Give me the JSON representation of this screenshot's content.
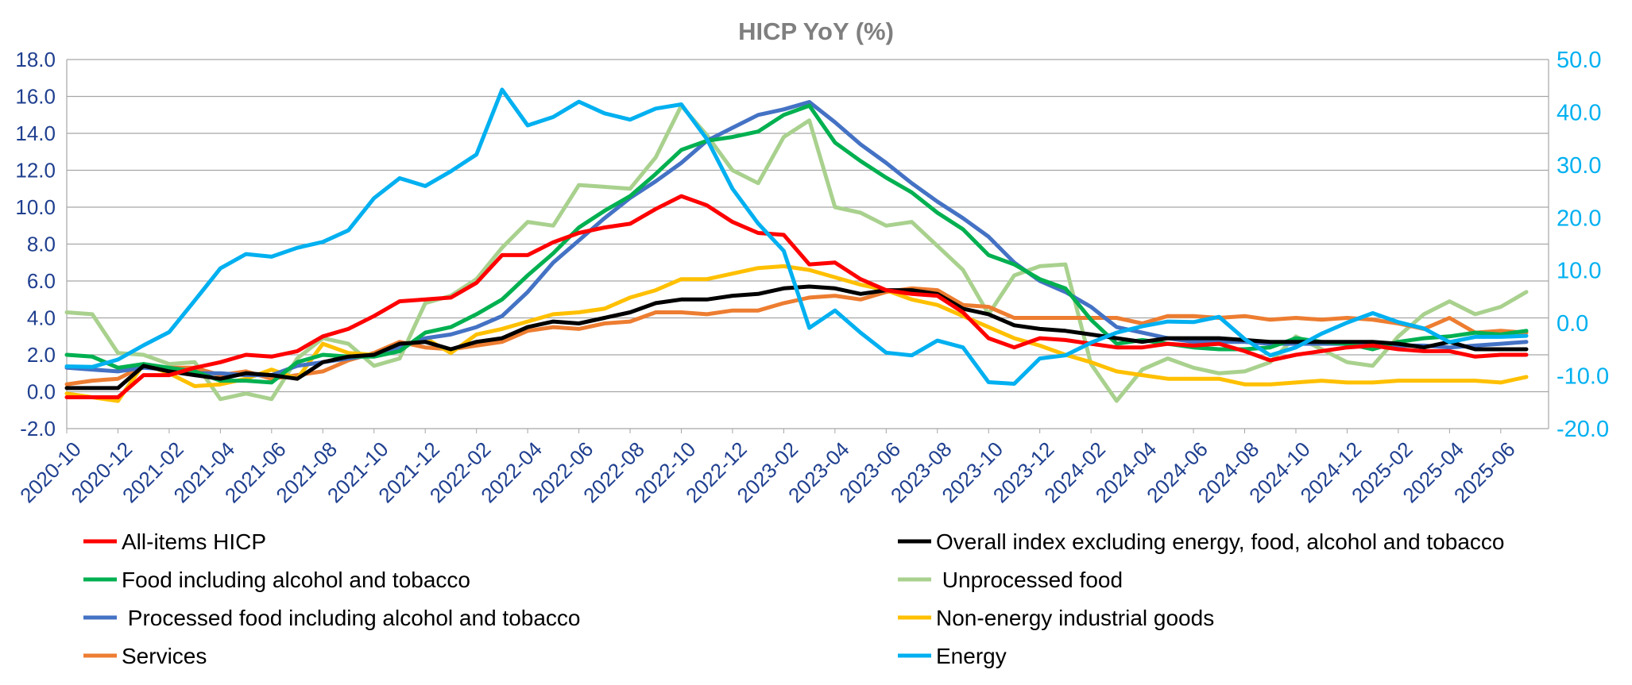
{
  "chart_data": {
    "type": "line",
    "title": "HICP YoY (%)",
    "x": [
      "2020-10",
      "2020-11",
      "2020-12",
      "2021-01",
      "2021-02",
      "2021-03",
      "2021-04",
      "2021-05",
      "2021-06",
      "2021-07",
      "2021-08",
      "2021-09",
      "2021-10",
      "2021-11",
      "2021-12",
      "2022-01",
      "2022-02",
      "2022-03",
      "2022-04",
      "2022-05",
      "2022-06",
      "2022-07",
      "2022-08",
      "2022-09",
      "2022-10",
      "2022-11",
      "2022-12",
      "2023-01",
      "2023-02",
      "2023-03",
      "2023-04",
      "2023-05",
      "2023-06",
      "2023-07",
      "2023-08",
      "2023-09",
      "2023-10",
      "2023-11",
      "2023-12",
      "2024-01",
      "2024-02",
      "2024-03",
      "2024-04",
      "2024-05",
      "2024-06",
      "2024-07",
      "2024-08",
      "2024-09",
      "2024-10",
      "2024-11",
      "2024-12",
      "2025-01",
      "2025-02",
      "2025-03",
      "2025-04",
      "2025-05",
      "2025-06",
      "2025-07"
    ],
    "x_tick_labels": [
      "2020-10",
      "2020-12",
      "2021-02",
      "2021-04",
      "2021-06",
      "2021-08",
      "2021-10",
      "2021-12",
      "2022-02",
      "2022-04",
      "2022-06",
      "2022-08",
      "2022-10",
      "2022-12",
      "2023-02",
      "2023-04",
      "2023-06",
      "2023-08",
      "2023-10",
      "2023-12",
      "2024-02",
      "2024-04",
      "2024-06",
      "2024-08",
      "2024-10",
      "2024-12",
      "2025-02",
      "2025-04",
      "2025-06"
    ],
    "y_left": {
      "ylim": [
        -2,
        18
      ],
      "ticks": [
        "-2.0",
        "0.0",
        "2.0",
        "4.0",
        "6.0",
        "8.0",
        "10.0",
        "12.0",
        "14.0",
        "16.0",
        "18.0"
      ],
      "color": "#1f3f8f"
    },
    "y_right": {
      "ylim": [
        -20,
        50
      ],
      "ticks": [
        "-20.0",
        "-10.0",
        "0.0",
        "10.0",
        "20.0",
        "30.0",
        "40.0",
        "50.0"
      ],
      "color": "#00b0f0"
    },
    "grid": true,
    "legend_position": "bottom",
    "series": [
      {
        "name": "All-items HICP",
        "color": "#ff0000",
        "axis": "left",
        "values": [
          -0.3,
          -0.3,
          -0.3,
          0.9,
          0.9,
          1.3,
          1.6,
          2.0,
          1.9,
          2.2,
          3.0,
          3.4,
          4.1,
          4.9,
          5.0,
          5.1,
          5.9,
          7.4,
          7.4,
          8.1,
          8.6,
          8.9,
          9.1,
          9.9,
          10.6,
          10.1,
          9.2,
          8.6,
          8.5,
          6.9,
          7.0,
          6.1,
          5.5,
          5.3,
          5.2,
          4.3,
          2.9,
          2.4,
          2.9,
          2.8,
          2.6,
          2.4,
          2.4,
          2.6,
          2.5,
          2.6,
          2.2,
          1.7,
          2.0,
          2.2,
          2.4,
          2.5,
          2.3,
          2.2,
          2.2,
          1.9,
          2.0,
          2.0
        ]
      },
      {
        "name": "Overall index excluding energy, food, alcohol and tobacco",
        "color": "#000000",
        "axis": "left",
        "values": [
          0.2,
          0.2,
          0.2,
          1.4,
          1.1,
          0.9,
          0.7,
          1.0,
          0.9,
          0.7,
          1.6,
          1.9,
          2.0,
          2.6,
          2.7,
          2.3,
          2.7,
          2.9,
          3.5,
          3.8,
          3.7,
          4.0,
          4.3,
          4.8,
          5.0,
          5.0,
          5.2,
          5.3,
          5.6,
          5.7,
          5.6,
          5.3,
          5.5,
          5.5,
          5.3,
          4.5,
          4.2,
          3.6,
          3.4,
          3.3,
          3.1,
          2.9,
          2.7,
          2.9,
          2.9,
          2.9,
          2.8,
          2.7,
          2.7,
          2.7,
          2.7,
          2.7,
          2.6,
          2.4,
          2.7,
          2.3,
          2.3,
          2.3
        ]
      },
      {
        "name": "Food including alcohol and tobacco",
        "color": "#00b050",
        "axis": "left",
        "values": [
          2.0,
          1.9,
          1.3,
          1.5,
          1.3,
          1.1,
          0.6,
          0.6,
          0.5,
          1.6,
          2.0,
          1.9,
          1.9,
          2.2,
          3.2,
          3.5,
          4.2,
          5.0,
          6.3,
          7.5,
          8.9,
          9.8,
          10.6,
          11.8,
          13.1,
          13.6,
          13.8,
          14.1,
          15.0,
          15.5,
          13.5,
          12.5,
          11.6,
          10.8,
          9.7,
          8.8,
          7.4,
          6.9,
          6.1,
          5.6,
          3.9,
          2.6,
          2.8,
          2.6,
          2.4,
          2.3,
          2.3,
          2.4,
          2.9,
          2.7,
          2.6,
          2.3,
          2.7,
          2.9,
          3.0,
          3.2,
          3.1,
          3.3
        ]
      },
      {
        "name": " Unprocessed food",
        "color": "#a9d18e",
        "axis": "left",
        "values": [
          4.3,
          4.2,
          2.1,
          2.0,
          1.5,
          1.6,
          -0.4,
          -0.1,
          -0.4,
          1.8,
          2.9,
          2.6,
          1.4,
          1.8,
          4.8,
          5.2,
          6.1,
          7.8,
          9.2,
          9.0,
          11.2,
          11.1,
          11.0,
          12.7,
          15.5,
          13.9,
          12.0,
          11.3,
          13.8,
          14.7,
          10.0,
          9.7,
          9.0,
          9.2,
          7.9,
          6.6,
          4.2,
          6.3,
          6.8,
          6.9,
          1.5,
          -0.5,
          1.2,
          1.8,
          1.3,
          1.0,
          1.1,
          1.6,
          3.0,
          2.3,
          1.6,
          1.4,
          3.0,
          4.2,
          4.9,
          4.2,
          4.6,
          5.4
        ]
      },
      {
        "name": " Processed food including alcohol and tobacco",
        "color": "#4472c4",
        "axis": "left",
        "values": [
          1.3,
          1.2,
          1.1,
          1.3,
          1.2,
          1.0,
          1.0,
          0.9,
          0.9,
          1.4,
          1.6,
          1.8,
          2.0,
          2.4,
          2.9,
          3.1,
          3.5,
          4.1,
          5.4,
          7.0,
          8.2,
          9.4,
          10.5,
          11.4,
          12.4,
          13.6,
          14.3,
          15.0,
          15.3,
          15.7,
          14.6,
          13.4,
          12.4,
          11.3,
          10.3,
          9.4,
          8.4,
          7.0,
          6.0,
          5.4,
          4.6,
          3.5,
          3.2,
          2.9,
          2.7,
          2.7,
          2.7,
          2.6,
          2.6,
          2.6,
          2.6,
          2.6,
          2.5,
          2.5,
          2.4,
          2.5,
          2.6,
          2.7
        ]
      },
      {
        "name": "Non-energy industrial goods",
        "color": "#ffc000",
        "axis": "left",
        "values": [
          -0.1,
          -0.3,
          -0.5,
          1.5,
          1.0,
          0.3,
          0.4,
          0.7,
          1.2,
          0.7,
          2.6,
          2.1,
          2.0,
          2.4,
          2.9,
          2.1,
          3.1,
          3.4,
          3.8,
          4.2,
          4.3,
          4.5,
          5.1,
          5.5,
          6.1,
          6.1,
          6.4,
          6.7,
          6.8,
          6.6,
          6.2,
          5.8,
          5.5,
          5.0,
          4.7,
          4.1,
          3.5,
          2.9,
          2.5,
          2.0,
          1.6,
          1.1,
          0.9,
          0.7,
          0.7,
          0.7,
          0.4,
          0.4,
          0.5,
          0.6,
          0.5,
          0.5,
          0.6,
          0.6,
          0.6,
          0.6,
          0.5,
          0.8
        ]
      },
      {
        "name": "Services",
        "color": "#ed7d31",
        "axis": "left",
        "values": [
          0.4,
          0.6,
          0.7,
          1.4,
          1.3,
          1.3,
          0.9,
          1.1,
          0.7,
          0.9,
          1.1,
          1.7,
          2.1,
          2.7,
          2.4,
          2.3,
          2.5,
          2.7,
          3.3,
          3.5,
          3.4,
          3.7,
          3.8,
          4.3,
          4.3,
          4.2,
          4.4,
          4.4,
          4.8,
          5.1,
          5.2,
          5.0,
          5.4,
          5.6,
          5.5,
          4.7,
          4.6,
          4.0,
          4.0,
          4.0,
          4.0,
          4.0,
          3.7,
          4.1,
          4.1,
          4.0,
          4.1,
          3.9,
          4.0,
          3.9,
          4.0,
          3.9,
          3.7,
          3.4,
          4.0,
          3.2,
          3.3,
          3.2
        ]
      },
      {
        "name": "Energy",
        "color": "#00b0f0",
        "axis": "right",
        "values": [
          -8.2,
          -8.3,
          -6.9,
          -4.2,
          -1.7,
          4.3,
          10.4,
          13.1,
          12.6,
          14.3,
          15.4,
          17.6,
          23.7,
          27.5,
          26.0,
          28.8,
          32.0,
          44.3,
          37.5,
          39.1,
          42.0,
          39.8,
          38.6,
          40.7,
          41.5,
          34.9,
          25.5,
          18.9,
          13.7,
          -0.9,
          2.4,
          -1.8,
          -5.6,
          -6.1,
          -3.3,
          -4.6,
          -11.2,
          -11.5,
          -6.7,
          -6.1,
          -3.7,
          -1.8,
          -0.6,
          0.3,
          0.2,
          1.2,
          -3.0,
          -6.1,
          -4.6,
          -2.0,
          0.1,
          1.9,
          0.2,
          -1.0,
          -3.6,
          -2.6,
          -2.6,
          -2.4
        ]
      }
    ]
  }
}
